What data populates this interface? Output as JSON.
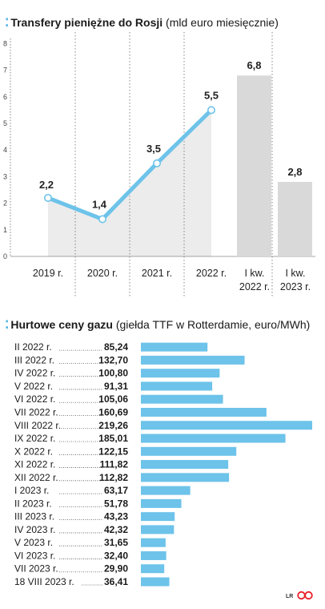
{
  "chart1_title": {
    "bold": "Transfery pieniężne do Rosji",
    "sub": "(mld euro miesięcznie)"
  },
  "chart2_title": {
    "bold": "Hurtowe ceny gazu",
    "sub": "(giełda TTF w Rotterdamie, euro/MWh)"
  },
  "credit": "LR",
  "colors": {
    "accent": "#6dc3ea",
    "line": "#6dc3ea",
    "bar_gray": "#d9d9d9",
    "area": "#ececec",
    "dots": "#4fb6e6",
    "brand": "#e8202a"
  },
  "chart_data": [
    {
      "type": "line",
      "title": "Transfery pieniężne do Rosji",
      "subtitle": "(mld euro miesięcznie)",
      "ylim": [
        0,
        8
      ],
      "yticks": [
        "0",
        "1",
        "2",
        "3",
        "4",
        "5",
        "6",
        "7",
        "8"
      ],
      "categories": [
        "2019 r.",
        "2020 r.",
        "2021 r.",
        "2022 r.",
        "I kw. 2022 r.",
        "I kw. 2023 r."
      ],
      "line_values": [
        2.2,
        1.4,
        3.5,
        5.5
      ],
      "line_labels": [
        "2,2",
        "1,4",
        "3,5",
        "5,5"
      ],
      "bar_values": [
        6.8,
        2.8
      ],
      "bar_labels": [
        "6,8",
        "2,8"
      ]
    },
    {
      "type": "bar",
      "orientation": "horizontal",
      "title": "Hurtowe ceny gazu",
      "subtitle": "(giełda TTF w Rotterdamie, euro/MWh)",
      "categories": [
        "II 2022 r.",
        "III 2022 r.",
        "IV 2022 r.",
        "V 2022 r.",
        "VI 2022 r.",
        "VII 2022 r.",
        "VIII 2022 r.",
        "IX 2022 r.",
        "X 2022 r.",
        "XI 2022 r.",
        "XII 2022 r.",
        "I 2023 r.",
        "II 2023 r.",
        "III 2023 r.",
        "IV 2023 r.",
        "V 2023 r.",
        "VI 2023 r.",
        "VII 2023 r.",
        "18 VIII 2023 r."
      ],
      "values": [
        85.24,
        132.7,
        100.8,
        91.31,
        105.06,
        160.69,
        219.26,
        185.01,
        122.15,
        111.82,
        112.82,
        63.17,
        51.78,
        43.23,
        42.32,
        31.65,
        32.4,
        29.9,
        36.41
      ],
      "value_labels": [
        "85,24",
        "132,70",
        "100,80",
        "91,31",
        "105,06",
        "160,69",
        "219,26",
        "185,01",
        "122,15",
        "111,82",
        "112,82",
        "63,17",
        "51,78",
        "43,23",
        "42,32",
        "31,65",
        "32,40",
        "29,90",
        "36,41"
      ]
    }
  ]
}
